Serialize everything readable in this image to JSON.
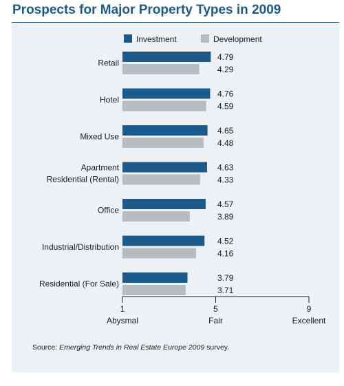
{
  "chart_data": {
    "type": "bar",
    "orientation": "horizontal",
    "title": "Prospects for Major Property Types in 2009",
    "categories": [
      [
        "Retail"
      ],
      [
        "Hotel"
      ],
      [
        "Mixed Use"
      ],
      [
        "Apartment",
        "Residential (Rental)"
      ],
      [
        "Office"
      ],
      [
        "Industrial/Distribution"
      ],
      [
        "Residential (For Sale)"
      ]
    ],
    "series": [
      {
        "name": "Investment",
        "values": [
          4.79,
          4.76,
          4.65,
          4.63,
          4.57,
          4.52,
          3.79
        ],
        "labels": [
          "4.79",
          "4.76",
          "4.65",
          "4.63",
          "4.57",
          "4.52",
          "3.79"
        ]
      },
      {
        "name": "Development",
        "values": [
          4.29,
          4.59,
          4.48,
          4.33,
          3.89,
          4.16,
          3.71
        ],
        "labels": [
          "4.29",
          "4.59",
          "4.48",
          "4.33",
          "3.89",
          "4.16",
          "3.71"
        ]
      }
    ],
    "xlim": [
      1,
      9
    ],
    "x_ticks": [
      {
        "value": 1,
        "label": "1",
        "sublabel": "Abysmal"
      },
      {
        "value": 5,
        "label": "5",
        "sublabel": "Fair"
      },
      {
        "value": 9,
        "label": "9",
        "sublabel": "Excellent"
      }
    ],
    "colors": {
      "Investment": "#1c5a8c",
      "Development": "#b9bcbf"
    },
    "legend_position": "top",
    "grid": false
  },
  "source": {
    "prefix": "Source: ",
    "italic": "Emerging Trends in Real Estate Europe 2009",
    "suffix": " survey."
  }
}
